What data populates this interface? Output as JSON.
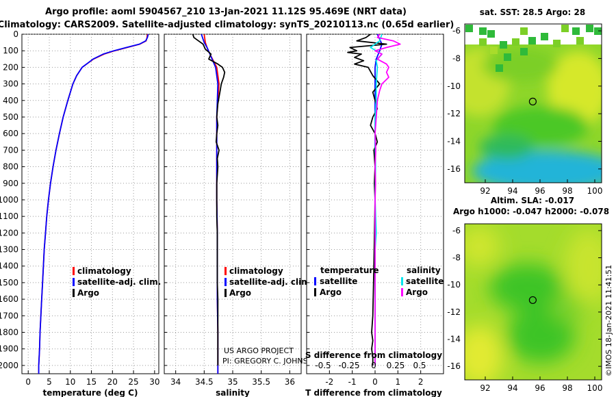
{
  "header": {
    "line1": "Argo profile: aoml 5904567_210 13-Jan-2021 11.12S 95.469E (NRT data)",
    "line2": "Climatology: CARS2009. Satellite-adjusted climatology: synTS_20210113.nc (0.65d earlier)"
  },
  "colors": {
    "climatology": "#ff0000",
    "satellite": "#0000ff",
    "argo": "#000000",
    "sat_salinity": "#00e5ee",
    "argo_salinity": "#ff00ff"
  },
  "depth_axis": {
    "range": [
      0,
      2050
    ],
    "ticks": [
      "0",
      "100",
      "200",
      "300",
      "400",
      "500",
      "600",
      "700",
      "800",
      "900",
      "1000",
      "1100",
      "1200",
      "1300",
      "1400",
      "1500",
      "1600",
      "1700",
      "1800",
      "1900",
      "2000"
    ]
  },
  "legend": {
    "climatology": "climatology",
    "satellite_adj": "satellite-adj. clim.",
    "argo": "Argo"
  },
  "diff_legend": {
    "temperature": "temperature",
    "salinity": "salinity",
    "satellite": "satellite",
    "argo": "Argo"
  },
  "credits": {
    "project": "US ARGO PROJECT",
    "pi": "PI: GREGORY C. JOHNSON"
  },
  "chart_data": [
    {
      "type": "line",
      "id": "temperature",
      "xlabel": "temperature (deg C)",
      "xlim": [
        -1.5,
        31
      ],
      "xticks": [
        0,
        5,
        10,
        15,
        20,
        25,
        30
      ],
      "ylabel": "depth",
      "ylim": [
        2050,
        0
      ],
      "series": [
        {
          "name": "climatology",
          "color": "#ff0000",
          "depth": [
            0,
            20,
            40,
            60,
            80,
            100,
            120,
            150,
            200,
            250,
            300,
            400,
            500,
            600,
            700,
            800,
            900,
            1000,
            1100,
            1200,
            1300,
            1400,
            1500,
            1600,
            1700,
            1800,
            1900,
            2000,
            2050
          ],
          "values": [
            28.3,
            28.2,
            28.0,
            26.5,
            23.5,
            20.5,
            18.0,
            15.5,
            12.8,
            11.5,
            10.6,
            9.4,
            8.3,
            7.4,
            6.6,
            5.9,
            5.3,
            4.8,
            4.4,
            4.1,
            3.8,
            3.6,
            3.4,
            3.2,
            3.0,
            2.8,
            2.7,
            2.5,
            2.5
          ]
        },
        {
          "name": "satellite-adj. clim.",
          "color": "#0000ff",
          "depth": [
            0,
            20,
            40,
            60,
            80,
            100,
            120,
            150,
            200,
            250,
            300,
            400,
            500,
            600,
            700,
            800,
            900,
            1000,
            1100,
            1200,
            1300,
            1400,
            1500,
            1600,
            1700,
            1800,
            1900,
            2000,
            2050
          ],
          "values": [
            28.5,
            28.3,
            27.9,
            26.4,
            23.3,
            20.3,
            17.8,
            15.4,
            12.8,
            11.5,
            10.6,
            9.4,
            8.3,
            7.4,
            6.6,
            5.9,
            5.3,
            4.8,
            4.4,
            4.1,
            3.8,
            3.6,
            3.4,
            3.2,
            3.0,
            2.8,
            2.7,
            2.5,
            2.5
          ]
        }
      ]
    },
    {
      "type": "line",
      "id": "salinity",
      "xlabel": "salinity",
      "xlim": [
        33.8,
        36.2
      ],
      "xticks": [
        34,
        34.5,
        35,
        35.5,
        36
      ],
      "ylabel": "depth",
      "ylim": [
        2050,
        0
      ],
      "series": [
        {
          "name": "climatology",
          "color": "#ff0000",
          "depth": [
            0,
            50,
            80,
            120,
            200,
            300,
            400,
            500,
            600,
            700,
            800,
            1000,
            1200,
            1400,
            1600,
            1800,
            2000,
            2050
          ],
          "values": [
            34.5,
            34.52,
            34.55,
            34.6,
            34.72,
            34.76,
            34.74,
            34.72,
            34.72,
            34.72,
            34.72,
            34.72,
            34.73,
            34.73,
            34.73,
            34.74,
            34.74,
            34.74
          ]
        },
        {
          "name": "satellite-adj. clim.",
          "color": "#0000ff",
          "depth": [
            0,
            50,
            80,
            120,
            200,
            300,
            400,
            500,
            600,
            700,
            800,
            1000,
            1200,
            1400,
            1600,
            1800,
            2000,
            2050
          ],
          "values": [
            34.45,
            34.5,
            34.55,
            34.6,
            34.7,
            34.74,
            34.73,
            34.72,
            34.72,
            34.72,
            34.72,
            34.72,
            34.73,
            34.73,
            34.73,
            34.74,
            34.74,
            34.74
          ]
        },
        {
          "name": "Argo",
          "color": "#000000",
          "depth": [
            0,
            20,
            40,
            60,
            90,
            120,
            150,
            180,
            200,
            230,
            260,
            300,
            340,
            380,
            420,
            460,
            500,
            550,
            600,
            650,
            700,
            750,
            800,
            850,
            900,
            1000,
            1100,
            1200,
            1300,
            1400,
            1500,
            1600,
            1700,
            1800,
            1900,
            2000
          ],
          "values": [
            34.3,
            34.32,
            34.4,
            34.48,
            34.52,
            34.62,
            34.58,
            34.74,
            34.82,
            34.86,
            34.84,
            34.8,
            34.78,
            34.76,
            34.74,
            34.73,
            34.72,
            34.74,
            34.72,
            34.71,
            34.76,
            34.73,
            34.74,
            34.73,
            34.72,
            34.72,
            34.72,
            34.73,
            34.73,
            34.73,
            34.73,
            34.74,
            34.74,
            34.74,
            34.74,
            34.74
          ]
        }
      ]
    },
    {
      "type": "line",
      "id": "differences",
      "xlabel": "T difference from climatology",
      "xlim": [
        -3,
        3
      ],
      "xticks": [
        -2,
        -1,
        0,
        1,
        2
      ],
      "secondary_label": "S difference from climatology",
      "secondary_ticks": [
        "-0.5",
        "-0.25",
        "0",
        "0.25",
        "0.5"
      ],
      "ylabel": "depth",
      "ylim": [
        2050,
        0
      ],
      "series": [
        {
          "name": "satellite (temperature)",
          "color": "#0000ff",
          "depth": [
            0,
            30,
            60,
            100,
            150,
            200,
            300,
            400,
            600,
            800,
            1000,
            1500,
            2000
          ],
          "values": [
            0.1,
            0.2,
            0.3,
            0.2,
            0.05,
            0.0,
            0.0,
            0.0,
            0.0,
            0.0,
            0.0,
            0.0,
            0.0
          ]
        },
        {
          "name": "Argo (temperature)",
          "color": "#000000",
          "depth": [
            0,
            20,
            40,
            60,
            80,
            100,
            110,
            120,
            140,
            160,
            180,
            200,
            250,
            300,
            350,
            400,
            450,
            500,
            550,
            600,
            650,
            700,
            800,
            900,
            1000,
            1400,
            1700,
            1800,
            1850,
            1900,
            1950,
            2000
          ],
          "values": [
            -0.2,
            -0.4,
            -0.8,
            0.5,
            -1.1,
            -0.8,
            -1.2,
            -0.6,
            -0.9,
            -0.5,
            -0.9,
            -0.3,
            -0.1,
            0.2,
            -0.1,
            0.0,
            0.1,
            -0.1,
            -0.2,
            0.0,
            0.1,
            -0.05,
            0.0,
            -0.03,
            0.0,
            -0.05,
            -0.1,
            -0.15,
            -0.1,
            -0.15,
            -0.1,
            -0.1
          ]
        },
        {
          "name": "satellite (salinity)",
          "color": "#00e5ee",
          "depth": [
            0,
            40,
            80,
            120,
            160,
            200,
            300,
            400,
            500,
            600,
            800,
            1000,
            1200,
            1300,
            1500,
            2000
          ],
          "values": [
            0.3,
            0.2,
            -0.2,
            0.3,
            0.05,
            0.1,
            0.05,
            0.05,
            0.0,
            0.0,
            0.02,
            0.0,
            0.05,
            0.0,
            0.0,
            0.0
          ]
        },
        {
          "name": "Argo (salinity)",
          "color": "#ff00ff",
          "depth": [
            0,
            20,
            40,
            60,
            80,
            100,
            120,
            150,
            180,
            200,
            230,
            260,
            300,
            340,
            400,
            500,
            600,
            700,
            800,
            900,
            1000,
            1200,
            1400,
            1600,
            1800,
            2000
          ],
          "values": [
            0.2,
            0.1,
            0.8,
            1.1,
            0.5,
            0.0,
            0.3,
            0.1,
            0.5,
            0.6,
            0.5,
            0.6,
            0.3,
            0.2,
            0.1,
            0.05,
            0.0,
            0.03,
            0.0,
            0.02,
            0.0,
            0.0,
            0.0,
            0.0,
            0.0,
            0.0
          ]
        }
      ]
    },
    {
      "type": "heatmap",
      "id": "sst_map",
      "title": "sat. SST: 28.5 Argo: 28",
      "xticks": [
        "92",
        "94",
        "96",
        "98",
        "100"
      ],
      "yticks": [
        "-6",
        "-8",
        "-10",
        "-12",
        "-14",
        "-16"
      ],
      "xlim": [
        90.5,
        100.5
      ],
      "ylim": [
        -17,
        -5.5
      ],
      "float_position": [
        95.47,
        -11.12
      ]
    },
    {
      "type": "heatmap",
      "id": "sla_map",
      "title1": "Altim. SLA: -0.017",
      "title2": "Argo h1000: -0.047 h2000: -0.078",
      "xticks": [
        "92",
        "94",
        "96",
        "98",
        "100"
      ],
      "yticks": [
        "-6",
        "-8",
        "-10",
        "-12",
        "-14",
        "-16"
      ],
      "xlim": [
        90.5,
        100.5
      ],
      "ylim": [
        -17,
        -5.5
      ],
      "float_position": [
        95.47,
        -11.12
      ]
    }
  ],
  "watermark": "©IMOS 18-Jan-2021 11:41:51"
}
